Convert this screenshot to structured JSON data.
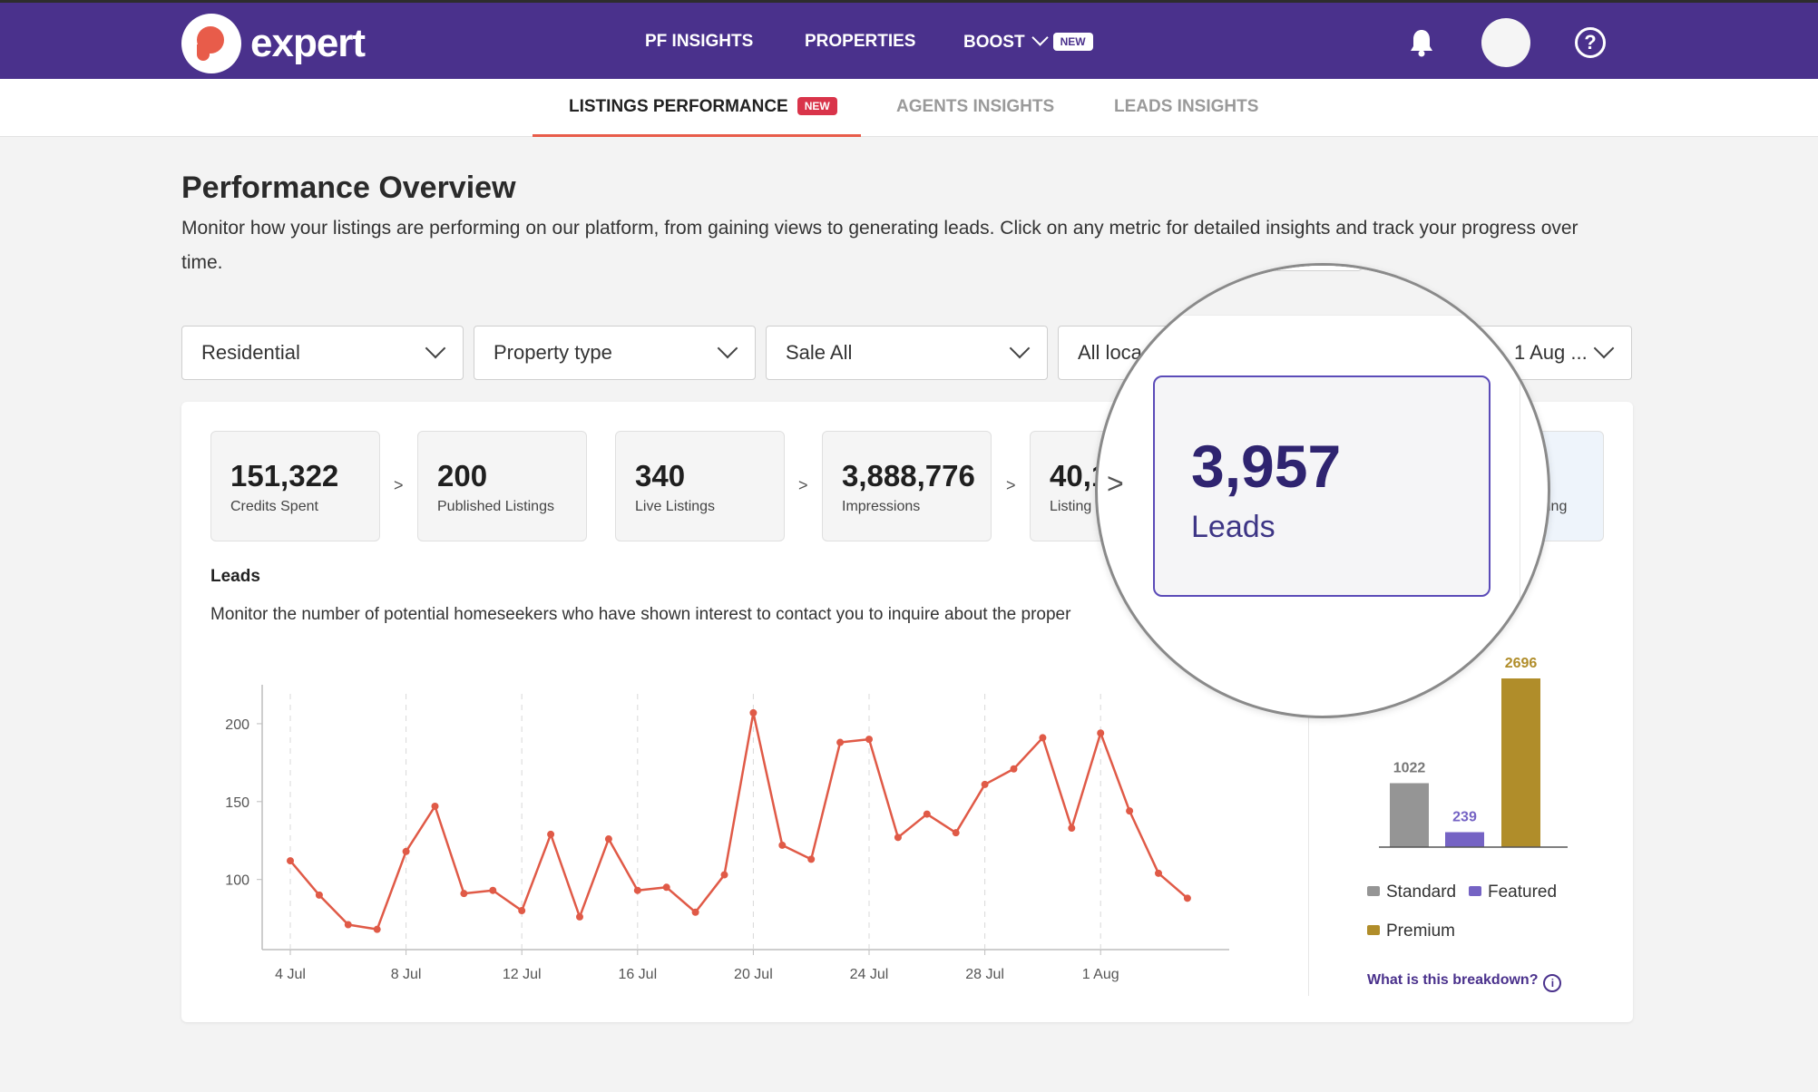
{
  "brand": {
    "name": "expert"
  },
  "topnav": {
    "items": [
      {
        "label": "PF INSIGHTS"
      },
      {
        "label": "PROPERTIES"
      },
      {
        "label": "BOOST",
        "badge": "NEW"
      }
    ]
  },
  "subtabs": [
    {
      "label": "LISTINGS PERFORMANCE",
      "badge": "NEW",
      "active": true
    },
    {
      "label": "AGENTS INSIGHTS"
    },
    {
      "label": "LEADS INSIGHTS"
    }
  ],
  "header": {
    "title": "Performance Overview",
    "description": "Monitor how your listings are performing on our platform, from gaining views to generating leads. Click on any metric for detailed insights and track your progress over time."
  },
  "filters": [
    {
      "value": "Residential"
    },
    {
      "value": "Property type"
    },
    {
      "value": "Sale All"
    },
    {
      "value": "All loca"
    },
    {
      "value": "1 Aug ..."
    }
  ],
  "metrics": [
    {
      "value": "151,322",
      "label": "Credits Spent"
    },
    {
      "value": "200",
      "label": "Published Listings"
    },
    {
      "value": "340",
      "label": "Live Listings"
    },
    {
      "value": "3,888,776",
      "label": "Impressions"
    },
    {
      "value": "40,1",
      "label": "Listing"
    },
    {
      "value": "",
      "label": "ing"
    }
  ],
  "arrows": {
    "symbol": ">"
  },
  "section": {
    "title": "Leads",
    "description": "Monitor the number of potential homeseekers who have shown interest to contact you to inquire about the proper"
  },
  "magnifier": {
    "value": "3,957",
    "label": "Leads",
    "arrow": ">"
  },
  "colors": {
    "brand": "#4a318c",
    "line": "#e05a47",
    "standard": "#959595",
    "featured": "#7563c4",
    "premium": "#b08d2a"
  },
  "chart_data": [
    {
      "type": "line",
      "x": [
        "3 Jul",
        "4 Jul",
        "5 Jul",
        "6 Jul",
        "7 Jul",
        "8 Jul",
        "9 Jul",
        "10 Jul",
        "11 Jul",
        "12 Jul",
        "13 Jul",
        "14 Jul",
        "15 Jul",
        "16 Jul",
        "17 Jul",
        "18 Jul",
        "19 Jul",
        "20 Jul",
        "21 Jul",
        "22 Jul",
        "23 Jul",
        "24 Jul",
        "25 Jul",
        "26 Jul",
        "27 Jul",
        "28 Jul",
        "29 Jul",
        "30 Jul",
        "31 Jul",
        "1 Aug",
        "2 Aug",
        "3 Aug",
        "4 Aug"
      ],
      "values": [
        null,
        112,
        90,
        71,
        68,
        118,
        147,
        91,
        93,
        80,
        129,
        76,
        126,
        93,
        95,
        79,
        103,
        207,
        122,
        113,
        188,
        190,
        127,
        142,
        130,
        161,
        171,
        191,
        133,
        194,
        144,
        104,
        88
      ],
      "xticks": [
        "4 Jul",
        "8 Jul",
        "12 Jul",
        "16 Jul",
        "20 Jul",
        "24 Jul",
        "28 Jul",
        "1 Aug"
      ],
      "yticks": [
        100,
        150,
        200
      ],
      "ylim": [
        55,
        225
      ],
      "grid": "vertical-dashed"
    },
    {
      "type": "bar",
      "categories": [
        "Standard",
        "Featured",
        "Premium"
      ],
      "values": [
        1022,
        239,
        2696
      ],
      "legend": "bottom"
    }
  ],
  "breakdown": {
    "link": "What is this breakdown?",
    "icon": "i"
  }
}
